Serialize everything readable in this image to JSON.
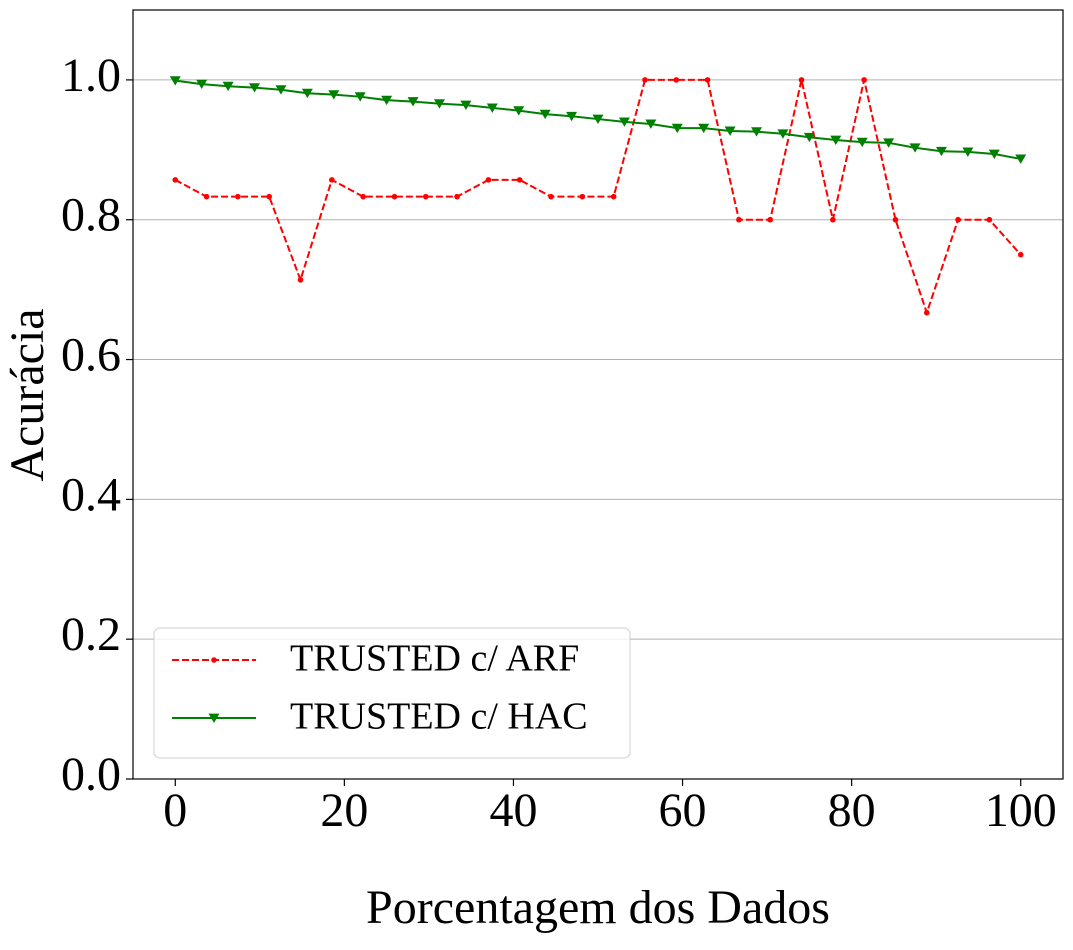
{
  "chart_data": {
    "type": "line",
    "x_label": "Porcentagem dos Dados",
    "y_label": "Acurácia",
    "xlim": [
      -5,
      105
    ],
    "ylim": [
      0,
      1.1
    ],
    "xticks": [
      0,
      20,
      40,
      60,
      80,
      100
    ],
    "yticks": [
      {
        "value": 0,
        "label": "0.0"
      },
      {
        "value": 0.2,
        "label": "0.2"
      },
      {
        "value": 0.4,
        "label": "0.4"
      },
      {
        "value": 0.6,
        "label": "0.6"
      },
      {
        "value": 0.8,
        "label": "0.8"
      },
      {
        "value": 1,
        "label": "1.0"
      }
    ],
    "grid": "y",
    "legend": "lower left",
    "series": [
      {
        "name": "TRUSTED c/ ARF",
        "color": "#ff0000",
        "linestyle": "dashed",
        "marker": "circle",
        "x": [
          0,
          3.7,
          7.41,
          11.11,
          14.81,
          18.52,
          22.22,
          25.93,
          29.63,
          33.33,
          37.04,
          40.74,
          44.44,
          48.15,
          51.85,
          55.56,
          59.26,
          62.96,
          66.67,
          70.37,
          74.07,
          77.78,
          81.48,
          85.19,
          88.89,
          92.59,
          96.3,
          100
        ],
        "values": [
          0.857,
          0.833,
          0.833,
          0.833,
          0.714,
          0.857,
          0.833,
          0.833,
          0.833,
          0.833,
          0.857,
          0.857,
          0.833,
          0.833,
          0.833,
          1.0,
          1.0,
          1.0,
          0.8,
          0.8,
          1.0,
          0.8,
          1.0,
          0.8,
          0.667,
          0.8,
          0.8,
          0.75
        ]
      },
      {
        "name": "TRUSTED c/ HAC",
        "color": "#008000",
        "linestyle": "solid",
        "marker": "triangle-down",
        "x": [
          0,
          3.125,
          6.25,
          9.375,
          12.5,
          15.625,
          18.75,
          21.875,
          25,
          28.125,
          31.25,
          34.375,
          37.5,
          40.625,
          43.75,
          46.875,
          50,
          53.125,
          56.25,
          59.375,
          62.5,
          65.625,
          68.75,
          71.875,
          75,
          78.125,
          81.25,
          84.375,
          87.5,
          90.625,
          93.75,
          96.875,
          100
        ],
        "values": [
          0.999,
          0.994,
          0.991,
          0.989,
          0.986,
          0.981,
          0.979,
          0.976,
          0.971,
          0.969,
          0.966,
          0.964,
          0.96,
          0.956,
          0.951,
          0.948,
          0.944,
          0.94,
          0.937,
          0.931,
          0.931,
          0.927,
          0.926,
          0.923,
          0.918,
          0.914,
          0.911,
          0.91,
          0.903,
          0.898,
          0.897,
          0.894,
          0.887
        ]
      }
    ]
  }
}
